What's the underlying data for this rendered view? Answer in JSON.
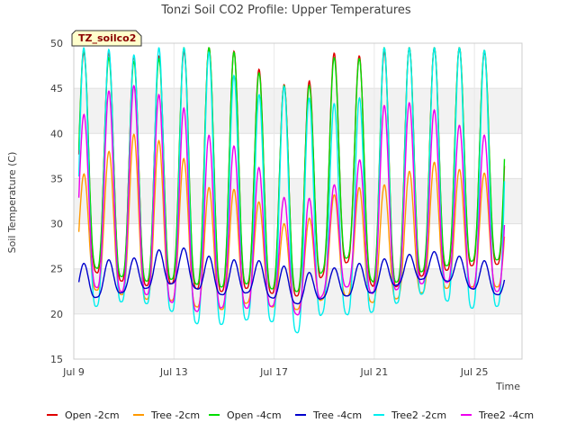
{
  "chart_data": {
    "type": "line",
    "title": "Tonzi Soil CO2 Profile: Upper Temperatures",
    "xlabel": "Time",
    "ylabel": "Soil Temperature (C)",
    "badge": "TZ_soilco2",
    "ylim": [
      15,
      50
    ],
    "xlim": [
      9,
      26.9
    ],
    "yticks": [
      15,
      20,
      25,
      30,
      35,
      40,
      45,
      50
    ],
    "xticks": [
      {
        "value": 9,
        "label": "Jul 9"
      },
      {
        "value": 13,
        "label": "Jul 13"
      },
      {
        "value": 17,
        "label": "Jul 17"
      },
      {
        "value": 21,
        "label": "Jul 21"
      },
      {
        "value": 25,
        "label": "Jul 25"
      }
    ],
    "grid": true,
    "legend_position": "bottom",
    "series": [
      {
        "name": "Open -2cm",
        "color": "#e00000",
        "daily_min": [
          26,
          24,
          23.5,
          23,
          23.5,
          22.5,
          22.5,
          23,
          22,
          22,
          25,
          26,
          22,
          23.5,
          24.5,
          25,
          25.5,
          25.5
        ],
        "daily_max": [
          49,
          49,
          48.5,
          48.5,
          49,
          49.5,
          49.5,
          47.5,
          45.5,
          45,
          49,
          48.5,
          49,
          49.5,
          49.5,
          49.5,
          49.5,
          47
        ]
      },
      {
        "name": "Tree -2cm",
        "color": "#ff9900",
        "daily_min": [
          23,
          22.5,
          22,
          21.5,
          21.5,
          20.5,
          20.5,
          21.5,
          20.5,
          20.5,
          22,
          22,
          21,
          22,
          22.5,
          23,
          23,
          23
        ],
        "daily_max": [
          35,
          37.5,
          40,
          39.5,
          38,
          34,
          34,
          33,
          30,
          30,
          33,
          34,
          34,
          35.5,
          37,
          36,
          36,
          34
        ]
      },
      {
        "name": "Open -4cm",
        "color": "#00dd00",
        "daily_min": [
          26.5,
          24.5,
          24,
          23.5,
          24,
          23,
          23,
          23.5,
          22.5,
          22.5,
          25.5,
          26.5,
          22.5,
          24,
          25,
          25.5,
          26,
          26
        ],
        "daily_max": [
          49.5,
          48.5,
          48,
          48,
          49.5,
          49.5,
          49.5,
          47,
          45.5,
          44.5,
          48.5,
          48,
          49.5,
          49.5,
          49.5,
          49.5,
          49.5,
          48
        ]
      },
      {
        "name": "Tree -4cm",
        "color": "#0000cc",
        "daily_min": [
          21.5,
          22,
          22.5,
          23,
          23.5,
          22.5,
          22,
          22.5,
          21.5,
          21,
          22,
          22,
          22.5,
          23.5,
          24,
          23.5,
          22.5,
          22
        ],
        "daily_max": [
          25.5,
          26,
          26,
          27,
          27.5,
          26.5,
          26,
          26,
          25.5,
          24.5,
          25,
          25.5,
          26,
          26.5,
          27,
          26.5,
          26,
          25.5
        ]
      },
      {
        "name": "Tree2 -2cm",
        "color": "#00eeee",
        "daily_min": [
          20.5,
          21,
          21.5,
          21,
          20,
          18.5,
          19,
          19.5,
          19,
          17.5,
          21,
          19.5,
          20.5,
          21.5,
          22.5,
          21,
          20.5,
          21
        ],
        "daily_max": [
          49.5,
          49.5,
          48.5,
          49.5,
          49.5,
          49.5,
          47,
          44,
          45.5,
          44,
          43.5,
          42.5,
          49.5,
          49.5,
          49.5,
          49.5,
          49.5,
          48
        ]
      },
      {
        "name": "Tree2 -4cm",
        "color": "#ee00ee",
        "daily_min": [
          24,
          22.5,
          22.5,
          22,
          21,
          20,
          21,
          20.5,
          21,
          19.5,
          23,
          23,
          22,
          23,
          23.5,
          23.5,
          22.5,
          22.5
        ],
        "daily_max": [
          41.5,
          44.5,
          45.5,
          44.5,
          43.5,
          40,
          39,
          37,
          33,
          32.5,
          34,
          35.5,
          43,
          43.5,
          43,
          41,
          40.5,
          37
        ]
      }
    ]
  }
}
